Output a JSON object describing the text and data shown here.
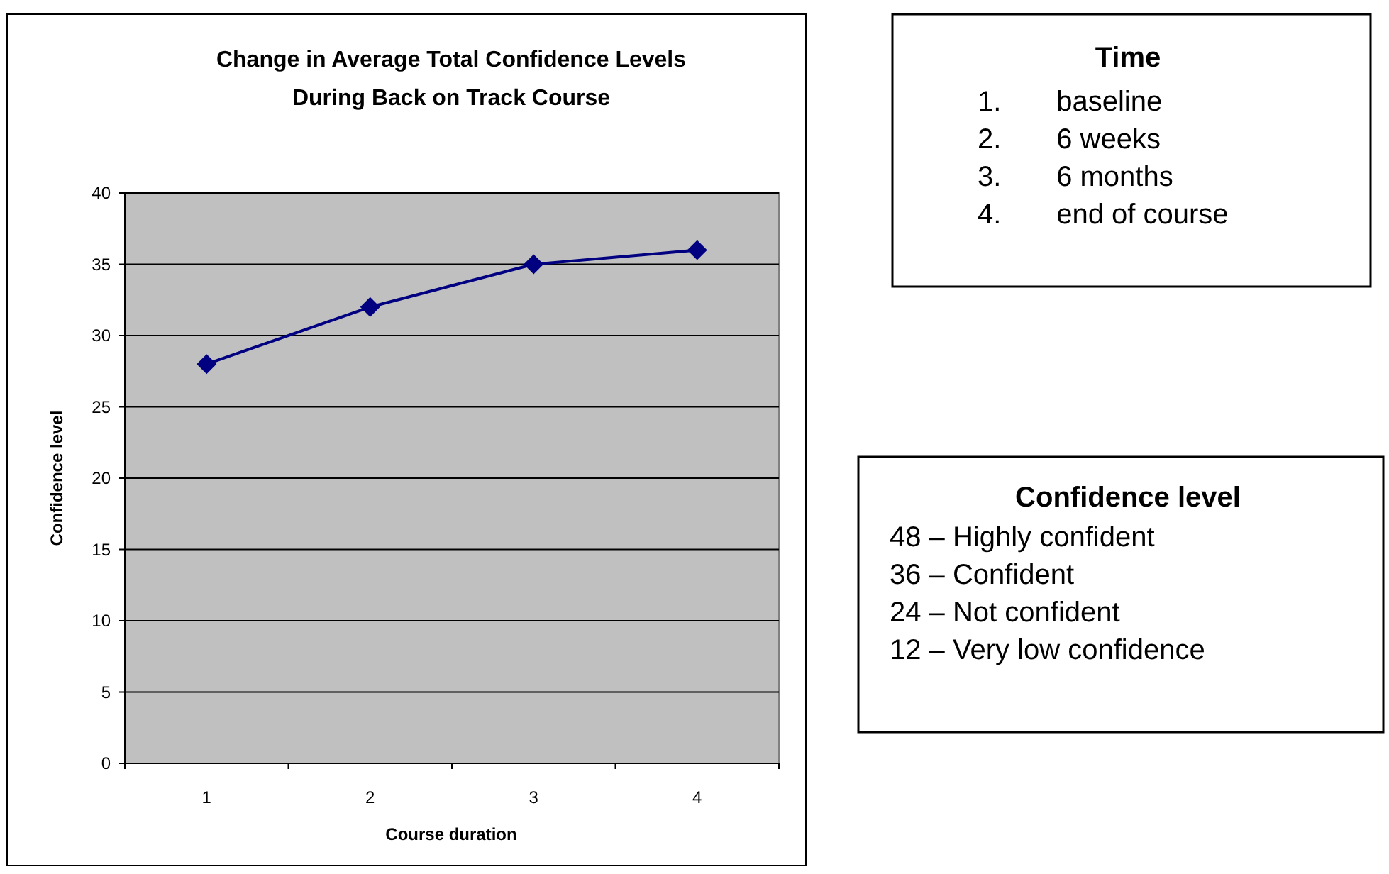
{
  "chart_data": [
    {
      "type": "line",
      "title": "Change in Average Total Confidence Levels\nDuring Back on Track Course",
      "xlabel": "Course duration",
      "ylabel": "Confidence level",
      "categories": [
        "1",
        "2",
        "3",
        "4"
      ],
      "series": [
        {
          "color": "#000080",
          "values": [
            28,
            32,
            35,
            36
          ]
        }
      ],
      "ylim": [
        0,
        40
      ],
      "yticks": [
        0,
        5,
        10,
        15,
        20,
        25,
        30,
        35,
        40
      ],
      "grid": "y",
      "marker": "diamond",
      "line_style": "solid"
    },
    {
      "type": "other",
      "title": "Time",
      "annotations": [
        "1. baseline",
        "2. 6 weeks",
        "3. 6 months",
        "4. end of course"
      ]
    },
    {
      "type": "other",
      "title": "Confidence level",
      "annotations": [
        "48 – Highly confident",
        "36 – Confident",
        "24 – Not confident",
        "12 – Very low confidence"
      ]
    }
  ]
}
